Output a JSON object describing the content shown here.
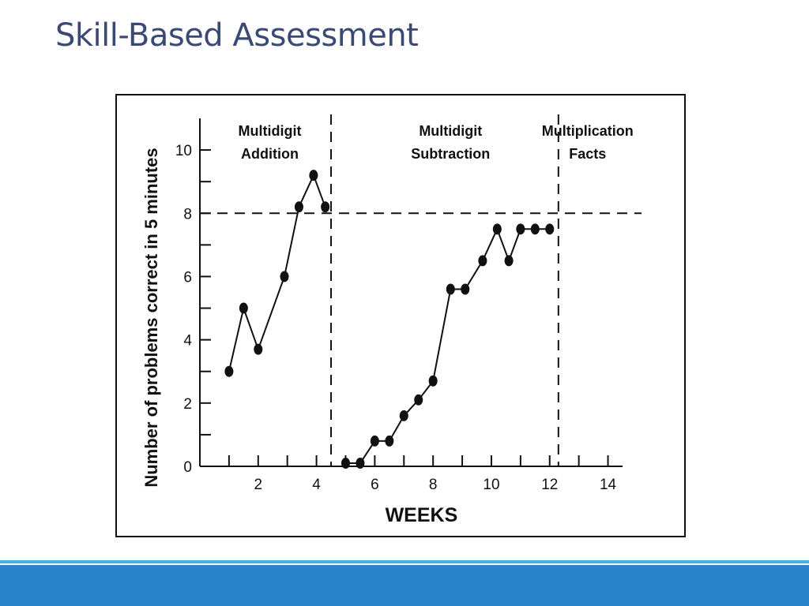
{
  "slide": {
    "title": "Skill-Based Assessment",
    "footer_colors": {
      "line": "#45b2e3",
      "bar": "#2a84c9"
    }
  },
  "chart_data": {
    "type": "line",
    "xlabel": "WEEKS",
    "ylabel": "Number of problems correct in 5 minutes",
    "xlim": [
      0,
      14.5
    ],
    "ylim": [
      0,
      11
    ],
    "x_tick_labels": [
      2,
      4,
      6,
      8,
      10,
      12,
      14
    ],
    "y_tick_labels": [
      0,
      2,
      4,
      6,
      8,
      10
    ],
    "x_minor_ticks": [
      1,
      3,
      5,
      7,
      9,
      11,
      13
    ],
    "y_minor_ticks": [
      1,
      3,
      5,
      7,
      9
    ],
    "goal_line": {
      "y": 8
    },
    "phase_dividers": [
      4.5,
      12.3
    ],
    "phases": [
      {
        "line1": "Multidigit",
        "line2": "Addition",
        "x_center": 2.4
      },
      {
        "line1": "Multidigit",
        "line2": "Subtraction",
        "x_center": 8.6
      },
      {
        "line1": "Multiplication",
        "line2": "Facts",
        "x_center": 13.3
      }
    ],
    "series": [
      {
        "points": [
          [
            1,
            3
          ],
          [
            1.5,
            5
          ],
          [
            2,
            3.7
          ],
          [
            2.9,
            6
          ],
          [
            3.4,
            8.2
          ],
          [
            3.9,
            9.2
          ],
          [
            4.3,
            8.2
          ]
        ]
      },
      {
        "points": [
          [
            5,
            0.1
          ],
          [
            5.5,
            0.1
          ],
          [
            6,
            0.8
          ],
          [
            6.5,
            0.8
          ],
          [
            7,
            1.6
          ],
          [
            7.5,
            2.1
          ],
          [
            8,
            2.7
          ],
          [
            8.6,
            5.6
          ],
          [
            9.1,
            5.6
          ],
          [
            9.7,
            6.5
          ],
          [
            10.2,
            7.5
          ],
          [
            10.6,
            6.5
          ],
          [
            11,
            7.5
          ],
          [
            11.5,
            7.5
          ],
          [
            12,
            7.5
          ]
        ]
      }
    ]
  }
}
